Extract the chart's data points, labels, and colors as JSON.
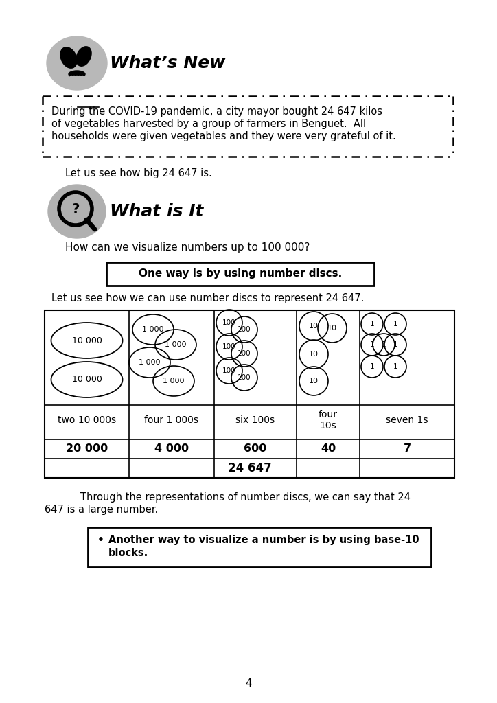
{
  "background_color": "#ffffff",
  "page_number": "4",
  "whats_new_title": "What’s New",
  "covid_line1": "During the COVID-19 pandemic, a city mayor bought 24 647 kilos",
  "covid_line2": "of vegetables harvested by a group of farmers in Benguet.  All",
  "covid_line3": "households were given vegetables and they were very grateful of it.",
  "paragraph2": "Let us see how big 24 647 is.",
  "what_is_it_title": "What is It",
  "question_text": "How can we visualize numbers up to 100 000?",
  "boxed_text": "One way is by using number discs.",
  "table_intro": "Let us see how we can use number discs to represent 24 647.",
  "col_labels": [
    "two 10 000s",
    "four 1 000s",
    "six 100s",
    "four",
    "seven 1s"
  ],
  "col_labels2": [
    "",
    "",
    "",
    "10s",
    ""
  ],
  "col_values": [
    "20 000",
    "4 000",
    "600",
    "40",
    "7"
  ],
  "total_label": "24 647",
  "para3_line1": "        Through the representations of number discs, we can say that 24",
  "para3_line2": "647 is a large number.",
  "bullet_line1": "Another way to visualize a number is by using base-10",
  "bullet_line2": "blocks."
}
